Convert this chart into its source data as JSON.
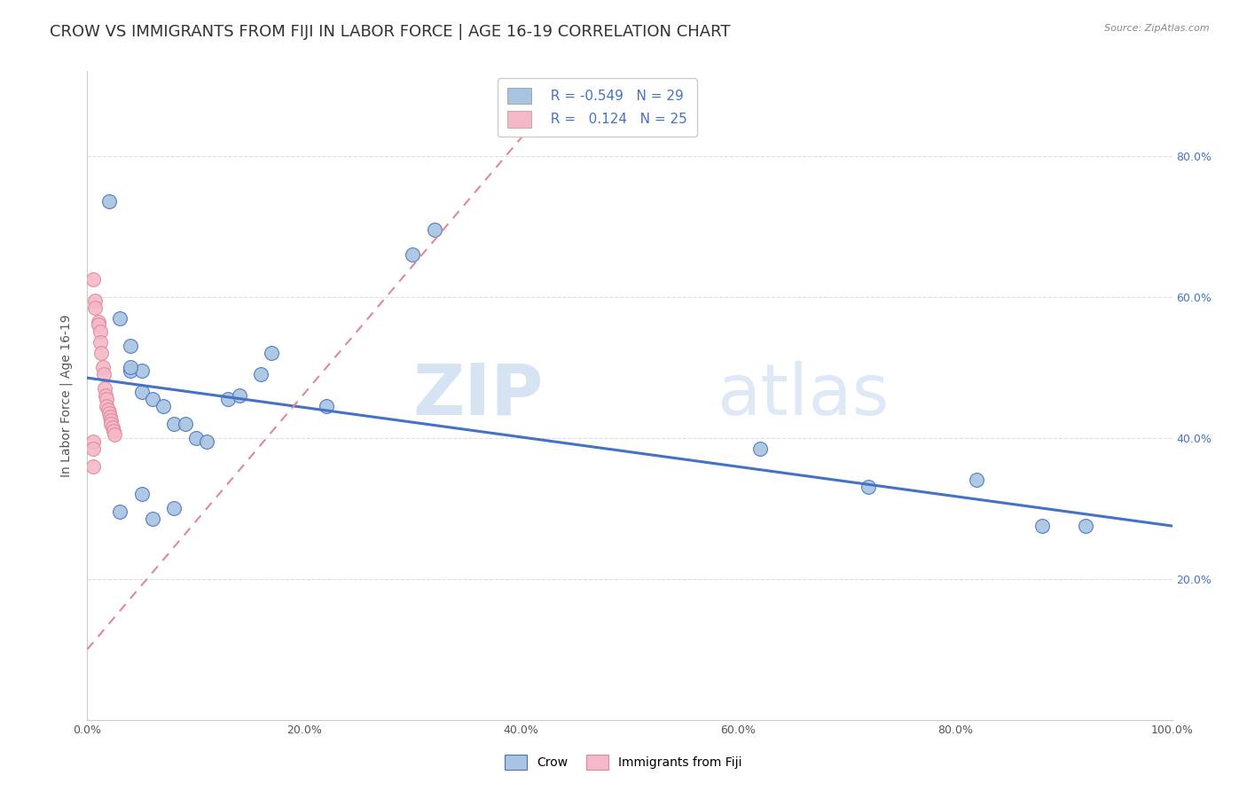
{
  "title": "CROW VS IMMIGRANTS FROM FIJI IN LABOR FORCE | AGE 16-19 CORRELATION CHART",
  "source": "Source: ZipAtlas.com",
  "ylabel": "In Labor Force | Age 16-19",
  "xlim": [
    0.0,
    1.0
  ],
  "ylim": [
    0.0,
    0.92
  ],
  "xticks": [
    0.0,
    0.2,
    0.4,
    0.6,
    0.8,
    1.0
  ],
  "yticks": [
    0.0,
    0.2,
    0.4,
    0.6,
    0.8
  ],
  "xticklabels": [
    "0.0%",
    "20.0%",
    "40.0%",
    "60.0%",
    "80.0%",
    "100.0%"
  ],
  "yticklabels_right": [
    "",
    "20.0%",
    "40.0%",
    "60.0%",
    "80.0%"
  ],
  "watermark_zip": "ZIP",
  "watermark_atlas": "atlas",
  "crow_scatter_x": [
    0.02,
    0.03,
    0.04,
    0.04,
    0.05,
    0.05,
    0.06,
    0.07,
    0.08,
    0.09,
    0.1,
    0.11,
    0.13,
    0.14,
    0.16,
    0.17,
    0.22,
    0.3,
    0.32,
    0.62,
    0.72,
    0.82,
    0.88,
    0.92,
    0.03,
    0.08,
    0.04,
    0.05,
    0.06
  ],
  "crow_scatter_y": [
    0.735,
    0.57,
    0.53,
    0.495,
    0.495,
    0.465,
    0.455,
    0.445,
    0.42,
    0.42,
    0.4,
    0.395,
    0.455,
    0.46,
    0.49,
    0.52,
    0.445,
    0.66,
    0.695,
    0.385,
    0.33,
    0.34,
    0.275,
    0.275,
    0.295,
    0.3,
    0.5,
    0.32,
    0.285
  ],
  "fiji_scatter_x": [
    0.005,
    0.007,
    0.007,
    0.01,
    0.01,
    0.012,
    0.012,
    0.013,
    0.014,
    0.015,
    0.016,
    0.017,
    0.018,
    0.018,
    0.019,
    0.02,
    0.021,
    0.022,
    0.022,
    0.023,
    0.024,
    0.025,
    0.005,
    0.005,
    0.005
  ],
  "fiji_scatter_y": [
    0.625,
    0.595,
    0.585,
    0.565,
    0.56,
    0.55,
    0.535,
    0.52,
    0.5,
    0.49,
    0.47,
    0.46,
    0.455,
    0.445,
    0.44,
    0.435,
    0.43,
    0.425,
    0.42,
    0.415,
    0.41,
    0.405,
    0.395,
    0.385,
    0.36
  ],
  "crow_line_x": [
    0.0,
    1.0
  ],
  "crow_line_y": [
    0.485,
    0.275
  ],
  "fiji_line_x": [
    0.0,
    0.43
  ],
  "fiji_line_y": [
    0.1,
    0.88
  ],
  "crow_color": "#4472c4",
  "crow_scatter_color": "#a8c4e0",
  "fiji_scatter_color": "#f4b8c8",
  "fiji_line_color": "#e08898",
  "background_color": "#ffffff",
  "grid_color": "#dddddd",
  "title_fontsize": 13,
  "axis_label_fontsize": 10,
  "tick_fontsize": 9,
  "right_tick_color": "#4472c4"
}
